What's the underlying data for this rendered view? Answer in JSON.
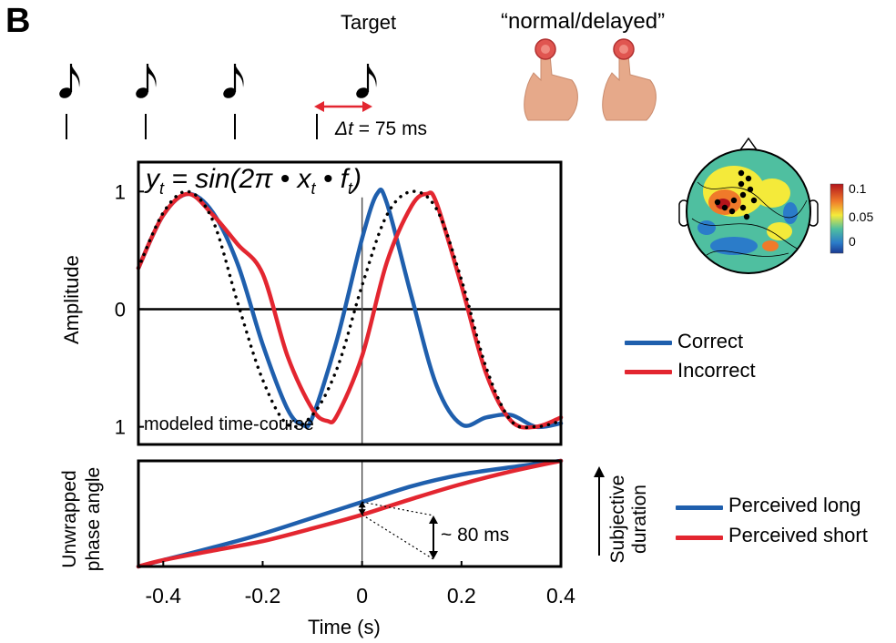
{
  "panel_letter": "B",
  "stimulus": {
    "target_label": "Target",
    "response_label": "“normal/delayed”",
    "delta_symbol": "Δt",
    "delta_text": " = 75 ms"
  },
  "top_panel": {
    "equation": "y = sin(2π • x • f)",
    "equation_parts": [
      "y",
      "t",
      " = sin(2π • x",
      "t",
      " • f",
      "t",
      ")"
    ],
    "annotation": "modeled time-course"
  },
  "topo": {
    "colorbar_ticks": [
      "0.1",
      "0.05",
      "0"
    ]
  },
  "bottom_panel": {
    "right_label": "Subjective duration",
    "right_label_lines": [
      "Subjective",
      "duration"
    ],
    "annotation": "~ 80 ms"
  },
  "colors": {
    "blue": "#1f5fad",
    "red": "#e32630",
    "black": "#000000",
    "grey": "#555555"
  },
  "chart_data": [
    {
      "type": "line",
      "ylabel": "Amplitude",
      "xlim": [
        -0.45,
        0.4
      ],
      "ylim": [
        -1.15,
        1.25
      ],
      "yticks": [
        "1",
        "0",
        "1"
      ],
      "ytick_values": [
        1,
        0,
        -1
      ],
      "grid": false,
      "series": [
        {
          "name": "Correct",
          "color": "#1f5fad",
          "x": [
            -0.45,
            -0.4,
            -0.35,
            -0.3,
            -0.25,
            -0.2,
            -0.15,
            -0.12,
            -0.1,
            -0.05,
            0.0,
            0.03,
            0.05,
            0.1,
            0.15,
            0.2,
            0.25,
            0.3,
            0.35,
            0.4
          ],
          "y": [
            0.35,
            0.8,
            0.98,
            0.82,
            0.38,
            -0.3,
            -0.85,
            -0.98,
            -0.92,
            -0.25,
            0.6,
            0.98,
            0.9,
            0.1,
            -0.65,
            -0.98,
            -0.92,
            -0.9,
            -1.0,
            -0.97
          ]
        },
        {
          "name": "Incorrect",
          "color": "#e32630",
          "x": [
            -0.45,
            -0.4,
            -0.35,
            -0.3,
            -0.25,
            -0.2,
            -0.15,
            -0.1,
            -0.07,
            -0.05,
            0.0,
            0.05,
            0.1,
            0.13,
            0.15,
            0.2,
            0.25,
            0.3,
            0.35,
            0.4
          ],
          "y": [
            0.35,
            0.8,
            0.98,
            0.8,
            0.55,
            0.3,
            -0.4,
            -0.85,
            -0.95,
            -0.9,
            -0.4,
            0.4,
            0.88,
            0.98,
            0.9,
            0.2,
            -0.55,
            -0.95,
            -1.0,
            -0.92
          ]
        },
        {
          "name": "",
          "color": "#000000",
          "dotted": true,
          "x": [
            -0.45,
            -0.4,
            -0.35,
            -0.3,
            -0.25,
            -0.2,
            -0.15,
            -0.1,
            -0.05,
            0.0,
            0.05,
            0.1,
            0.15,
            0.2,
            0.25,
            0.3,
            0.35,
            0.4
          ],
          "y": [
            0.35,
            0.82,
            1.0,
            0.75,
            0.05,
            -0.6,
            -0.98,
            -0.9,
            -0.5,
            0.2,
            0.8,
            1.0,
            0.85,
            0.25,
            -0.5,
            -0.95,
            -1.0,
            -0.95
          ]
        }
      ],
      "legend": [
        "Correct",
        "Incorrect"
      ]
    },
    {
      "type": "line",
      "xlabel": "Time (s)",
      "ylabel": "Unwrapped phase angle",
      "ylabel_lines": [
        "Unwrapped",
        "phase angle"
      ],
      "xlim": [
        -0.45,
        0.4
      ],
      "ylim": [
        0,
        1
      ],
      "xticks": [
        "-0.4",
        "-0.2",
        "0",
        "0.2",
        "0.4"
      ],
      "xtick_values": [
        -0.4,
        -0.2,
        0,
        0.2,
        0.4
      ],
      "grid": false,
      "series": [
        {
          "name": "Perceived long",
          "color": "#1f5fad",
          "x": [
            -0.45,
            -0.4,
            -0.3,
            -0.2,
            -0.1,
            0.0,
            0.1,
            0.2,
            0.3,
            0.4
          ],
          "y": [
            0.0,
            0.06,
            0.18,
            0.31,
            0.46,
            0.61,
            0.76,
            0.87,
            0.94,
            1.0
          ]
        },
        {
          "name": "Perceived short",
          "color": "#e32630",
          "x": [
            -0.45,
            -0.4,
            -0.3,
            -0.2,
            -0.1,
            0.0,
            0.1,
            0.2,
            0.3,
            0.4
          ],
          "y": [
            0.0,
            0.06,
            0.15,
            0.24,
            0.36,
            0.49,
            0.64,
            0.78,
            0.9,
            1.0
          ]
        }
      ],
      "legend": [
        "Perceived long",
        "Perceived short"
      ]
    }
  ]
}
